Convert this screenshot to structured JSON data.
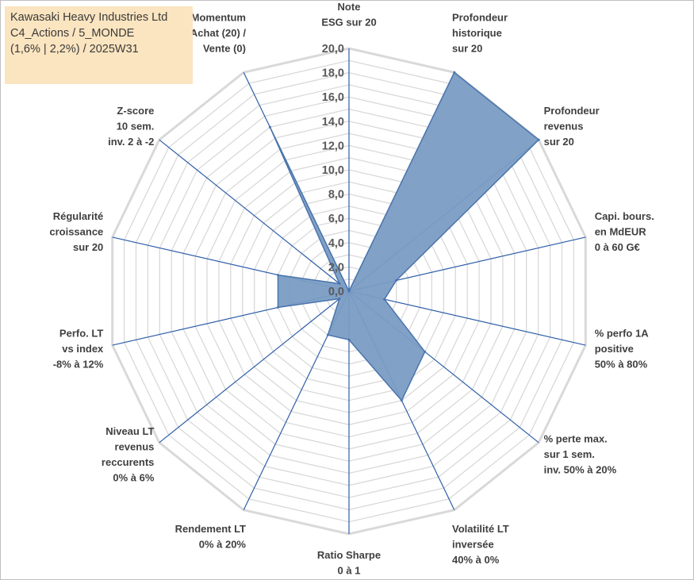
{
  "title_box": {
    "line1": "Kawasaki Heavy Industries Ltd",
    "line2": "C4_Actions / 5_MONDE",
    "line3": "(1,6% | 2,2%) / 2025W31"
  },
  "chart_data": {
    "type": "radar",
    "ylim": [
      0,
      20
    ],
    "tick_step": 2,
    "minor_step": 1,
    "tick_labels": [
      "0,0",
      "2,0",
      "4,0",
      "6,0",
      "8,0",
      "10,0",
      "12,0",
      "14,0",
      "16,0",
      "18,0",
      "20,0"
    ],
    "axes": [
      [
        "Note",
        "ESG sur 20"
      ],
      [
        "Profondeur",
        "historique",
        "sur 20"
      ],
      [
        "Profondeur",
        "revenus",
        "sur 20"
      ],
      [
        "Capi. bours.",
        "en MdEUR",
        "0 à 60 G€"
      ],
      [
        "% perfo 1A",
        "positive",
        "50% à 80%"
      ],
      [
        "% perte max.",
        "sur 1 sem.",
        "inv. 50% à 20%"
      ],
      [
        "Volatilité LT",
        "inversée",
        "40% à 0%"
      ],
      [
        "Ratio Sharpe",
        "0 à 1"
      ],
      [
        "Rendement LT",
        "0% à 20%"
      ],
      [
        "Niveau LT",
        "revenus",
        "reccurents",
        "0% à 6%"
      ],
      [
        "Perfo. LT",
        "vs index",
        "-8% à 12%"
      ],
      [
        "Régularité",
        "croissance",
        "sur 20"
      ],
      [
        "Z-score",
        "10 sem.",
        "inv. 2 à -2"
      ],
      [
        "Momentum",
        "Achat (20) /",
        "Vente (0)"
      ]
    ],
    "values": [
      0.0,
      20.0,
      20.0,
      4.0,
      3.0,
      8.0,
      10.0,
      4.0,
      4.0,
      1.0,
      6.0,
      6.0,
      1.0,
      15.0
    ],
    "colors": {
      "fill": "#7a9cc4",
      "stroke": "#4a74ac",
      "grid": "#d9d9d9",
      "axis_line": "#2f5fa8",
      "title_bg": "#fbe5c0"
    },
    "grid": true
  }
}
